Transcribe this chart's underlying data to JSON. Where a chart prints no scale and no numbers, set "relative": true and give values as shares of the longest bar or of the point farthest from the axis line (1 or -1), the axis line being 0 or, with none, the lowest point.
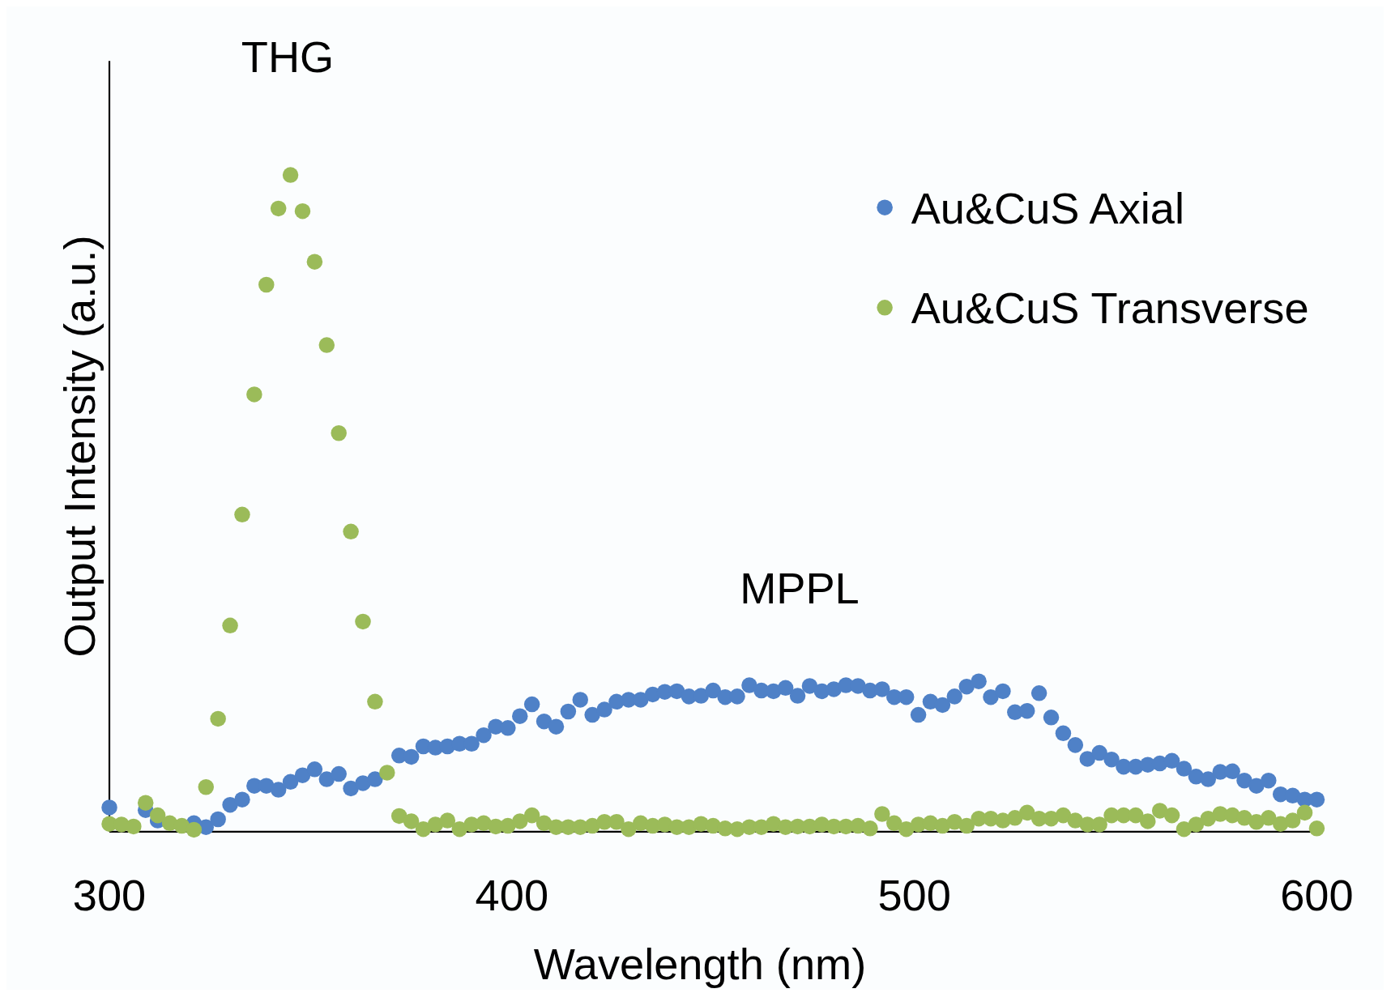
{
  "chart_data": {
    "type": "scatter",
    "xlabel": "Wavelength (nm)",
    "ylabel": "Output Intensity (a.u.)",
    "relative": true,
    "legend": "top right",
    "marker": "circle",
    "xlim": [
      300,
      600
    ],
    "xticks": [
      300,
      400,
      500,
      600
    ],
    "annotations": [
      "THG",
      "MPPL"
    ],
    "series": [
      {
        "name": "Au&CuS Axial",
        "color": "#4f81c7",
        "x": [
          300,
          309,
          312,
          321,
          324,
          327,
          330,
          333,
          336,
          339,
          342,
          345,
          348,
          351,
          354,
          357,
          360,
          363,
          366,
          372,
          375,
          378,
          381,
          384,
          387,
          390,
          393,
          396,
          399,
          402,
          405,
          408,
          411,
          414,
          417,
          420,
          423,
          426,
          429,
          432,
          435,
          438,
          441,
          444,
          447,
          450,
          453,
          456,
          459,
          462,
          465,
          468,
          471,
          474,
          477,
          480,
          483,
          486,
          489,
          492,
          495,
          498,
          501,
          504,
          507,
          510,
          513,
          516,
          519,
          522,
          525,
          528,
          531,
          534,
          537,
          540,
          543,
          546,
          549,
          552,
          555,
          558,
          561,
          564,
          567,
          570,
          573,
          576,
          579,
          582,
          585,
          588,
          591,
          594,
          597,
          600
        ],
        "values": [
          0.037,
          0.033,
          0.017,
          0.013,
          0.007,
          0.019,
          0.041,
          0.049,
          0.07,
          0.07,
          0.064,
          0.076,
          0.086,
          0.095,
          0.08,
          0.088,
          0.066,
          0.074,
          0.08,
          0.116,
          0.114,
          0.13,
          0.128,
          0.13,
          0.134,
          0.134,
          0.147,
          0.16,
          0.158,
          0.176,
          0.194,
          0.168,
          0.16,
          0.183,
          0.201,
          0.178,
          0.186,
          0.198,
          0.201,
          0.201,
          0.209,
          0.213,
          0.214,
          0.206,
          0.207,
          0.215,
          0.205,
          0.206,
          0.223,
          0.215,
          0.214,
          0.219,
          0.207,
          0.222,
          0.214,
          0.217,
          0.223,
          0.222,
          0.215,
          0.217,
          0.205,
          0.205,
          0.178,
          0.198,
          0.193,
          0.206,
          0.221,
          0.229,
          0.205,
          0.214,
          0.182,
          0.184,
          0.211,
          0.174,
          0.15,
          0.132,
          0.111,
          0.12,
          0.11,
          0.099,
          0.099,
          0.102,
          0.104,
          0.108,
          0.096,
          0.084,
          0.08,
          0.091,
          0.092,
          0.078,
          0.07,
          0.078,
          0.057,
          0.055,
          0.049,
          0.049
        ]
      },
      {
        "name": "Au&CuS Transverse",
        "color": "#9bbb59",
        "x": [
          300,
          303,
          306,
          309,
          312,
          315,
          318,
          321,
          324,
          327,
          330,
          333,
          336,
          339,
          342,
          345,
          348,
          351,
          354,
          357,
          360,
          363,
          366,
          369,
          372,
          375,
          378,
          381,
          384,
          387,
          390,
          393,
          396,
          399,
          402,
          405,
          408,
          411,
          414,
          417,
          420,
          423,
          426,
          429,
          432,
          435,
          438,
          441,
          444,
          447,
          450,
          453,
          456,
          459,
          462,
          465,
          468,
          471,
          474,
          477,
          480,
          483,
          486,
          489,
          492,
          495,
          498,
          501,
          504,
          507,
          510,
          513,
          516,
          519,
          522,
          525,
          528,
          531,
          534,
          537,
          540,
          543,
          546,
          549,
          552,
          555,
          558,
          561,
          564,
          567,
          570,
          573,
          576,
          579,
          582,
          585,
          588,
          591,
          594,
          597,
          600
        ],
        "values": [
          0.012,
          0.011,
          0.008,
          0.044,
          0.025,
          0.013,
          0.009,
          0.003,
          0.068,
          0.172,
          0.314,
          0.483,
          0.666,
          0.833,
          0.949,
          1,
          0.945,
          0.868,
          0.741,
          0.607,
          0.457,
          0.32,
          0.198,
          0.09,
          0.024,
          0.016,
          0.004,
          0.011,
          0.017,
          0.004,
          0.011,
          0.013,
          0.008,
          0.009,
          0.016,
          0.025,
          0.013,
          0.007,
          0.007,
          0.007,
          0.009,
          0.015,
          0.015,
          0.004,
          0.013,
          0.009,
          0.011,
          0.007,
          0.007,
          0.012,
          0.009,
          0.005,
          0.004,
          0.007,
          0.007,
          0.012,
          0.007,
          0.008,
          0.008,
          0.011,
          0.008,
          0.008,
          0.009,
          0.005,
          0.027,
          0.013,
          0.004,
          0.011,
          0.013,
          0.009,
          0.015,
          0.009,
          0.02,
          0.02,
          0.017,
          0.021,
          0.029,
          0.02,
          0.02,
          0.025,
          0.017,
          0.011,
          0.011,
          0.025,
          0.025,
          0.025,
          0.016,
          0.032,
          0.025,
          0.004,
          0.011,
          0.02,
          0.027,
          0.025,
          0.021,
          0.015,
          0.021,
          0.012,
          0.017,
          0.029,
          0.005
        ]
      }
    ]
  }
}
